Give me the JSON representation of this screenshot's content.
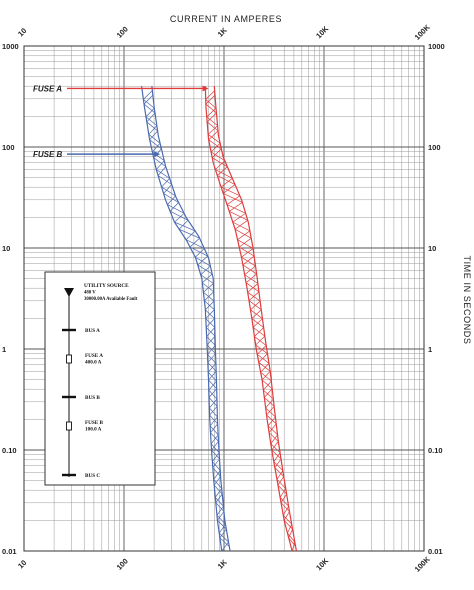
{
  "chart_data": {
    "type": "line",
    "x_title": "CURRENT IN AMPERES",
    "y_title": "TIME IN SECONDS",
    "x_scale": "log",
    "y_scale": "log",
    "xlim": [
      10,
      100000
    ],
    "ylim": [
      0.01,
      1000
    ],
    "grid": true,
    "x_ticks": [
      {
        "value": 10,
        "label": "10"
      },
      {
        "value": 100,
        "label": "100"
      },
      {
        "value": 1000,
        "label": "1K"
      },
      {
        "value": 10000,
        "label": "10K"
      },
      {
        "value": 100000,
        "label": "100K"
      }
    ],
    "y_ticks": [
      {
        "value": 1000,
        "label": "1000"
      },
      {
        "value": 100,
        "label": "100"
      },
      {
        "value": 10,
        "label": "10"
      },
      {
        "value": 1,
        "label": "1"
      },
      {
        "value": 0.1,
        "label": "0.10"
      },
      {
        "value": 0.01,
        "label": "0.01"
      }
    ],
    "series": [
      {
        "name": "FUSE A",
        "color": "#e03c3c",
        "min_curve": [
          [
            650,
            400
          ],
          [
            660,
            250
          ],
          [
            700,
            120
          ],
          [
            780,
            70
          ],
          [
            900,
            45
          ],
          [
            1100,
            25
          ],
          [
            1300,
            15
          ],
          [
            1500,
            8
          ],
          [
            1700,
            4
          ],
          [
            1900,
            2
          ],
          [
            2100,
            1
          ],
          [
            2400,
            0.5
          ],
          [
            2700,
            0.2
          ],
          [
            3000,
            0.1
          ],
          [
            3400,
            0.05
          ],
          [
            4000,
            0.02
          ],
          [
            4800,
            0.01
          ]
        ],
        "max_curve": [
          [
            800,
            400
          ],
          [
            830,
            250
          ],
          [
            880,
            130
          ],
          [
            980,
            80
          ],
          [
            1200,
            50
          ],
          [
            1500,
            30
          ],
          [
            1750,
            18
          ],
          [
            1950,
            10
          ],
          [
            2150,
            5
          ],
          [
            2350,
            2.5
          ],
          [
            2600,
            1.2
          ],
          [
            2900,
            0.6
          ],
          [
            3200,
            0.25
          ],
          [
            3500,
            0.12
          ],
          [
            3900,
            0.06
          ],
          [
            4500,
            0.025
          ],
          [
            5300,
            0.01
          ]
        ]
      },
      {
        "name": "FUSE B",
        "color": "#4a6ab0",
        "min_curve": [
          [
            150,
            400
          ],
          [
            160,
            250
          ],
          [
            180,
            120
          ],
          [
            210,
            60
          ],
          [
            260,
            30
          ],
          [
            320,
            18
          ],
          [
            420,
            12
          ],
          [
            520,
            8
          ],
          [
            600,
            5
          ],
          [
            650,
            2.5
          ],
          [
            680,
            1
          ],
          [
            700,
            0.5
          ],
          [
            720,
            0.2
          ],
          [
            750,
            0.1
          ],
          [
            790,
            0.05
          ],
          [
            860,
            0.02
          ],
          [
            950,
            0.01
          ]
        ],
        "max_curve": [
          [
            190,
            400
          ],
          [
            200,
            250
          ],
          [
            220,
            130
          ],
          [
            260,
            65
          ],
          [
            330,
            32
          ],
          [
            420,
            20
          ],
          [
            560,
            13
          ],
          [
            700,
            8
          ],
          [
            780,
            5
          ],
          [
            800,
            2.5
          ],
          [
            820,
            1
          ],
          [
            840,
            0.5
          ],
          [
            860,
            0.2
          ],
          [
            890,
            0.1
          ],
          [
            930,
            0.05
          ],
          [
            1020,
            0.02
          ],
          [
            1150,
            0.01
          ]
        ]
      }
    ],
    "annotations": [
      {
        "text": "FUSE A",
        "color": "#e03c3c",
        "arrow_to": [
          700,
          380
        ]
      },
      {
        "text": "FUSE B",
        "color": "#4a6ab0",
        "arrow_to": [
          230,
          85
        ]
      }
    ],
    "one_line_diagram": {
      "source": [
        "UTILITY SOURCE",
        "480 V",
        "30000.00A Available Fault"
      ],
      "items": [
        {
          "type": "bus",
          "label": "BUS A"
        },
        {
          "type": "fuse",
          "label": [
            "FUSE A",
            "400.0 A"
          ]
        },
        {
          "type": "bus",
          "label": "BUS B"
        },
        {
          "type": "fuse",
          "label": [
            "FUSE B",
            "100.0 A"
          ]
        },
        {
          "type": "bus",
          "label": "BUS C"
        }
      ]
    }
  }
}
